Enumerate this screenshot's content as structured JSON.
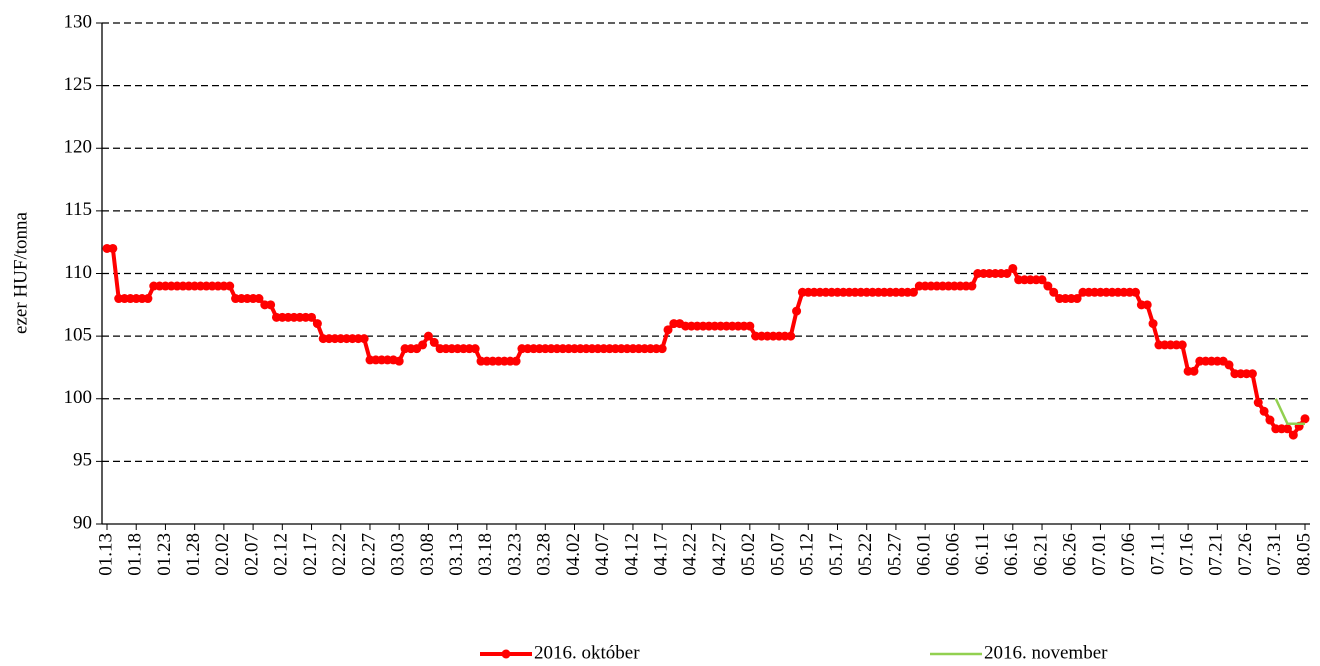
{
  "chart_data": {
    "type": "line",
    "y_label": "ezer HUF/tonna",
    "categories": [
      "01.13",
      null,
      null,
      null,
      null,
      "01.18",
      null,
      null,
      null,
      null,
      "01.23",
      null,
      null,
      null,
      null,
      "01.28",
      null,
      null,
      null,
      null,
      "02.02",
      null,
      null,
      null,
      null,
      "02.07",
      null,
      null,
      null,
      null,
      "02.12",
      null,
      null,
      null,
      null,
      "02.17",
      null,
      null,
      null,
      null,
      "02.22",
      null,
      null,
      null,
      null,
      "02.27",
      null,
      null,
      null,
      null,
      "03.03",
      null,
      null,
      null,
      null,
      "03.08",
      null,
      null,
      null,
      null,
      "03.13",
      null,
      null,
      null,
      null,
      "03.18",
      null,
      null,
      null,
      null,
      "03.23",
      null,
      null,
      null,
      null,
      "03.28",
      null,
      null,
      null,
      null,
      "04.02",
      null,
      null,
      null,
      null,
      "04.07",
      null,
      null,
      null,
      null,
      "04.12",
      null,
      null,
      null,
      null,
      "04.17",
      null,
      null,
      null,
      null,
      "04.22",
      null,
      null,
      null,
      null,
      "04.27",
      null,
      null,
      null,
      null,
      "05.02",
      null,
      null,
      null,
      null,
      "05.07",
      null,
      null,
      null,
      null,
      "05.12",
      null,
      null,
      null,
      null,
      "05.17",
      null,
      null,
      null,
      null,
      "05.22",
      null,
      null,
      null,
      null,
      "05.27",
      null,
      null,
      null,
      null,
      "06.01",
      null,
      null,
      null,
      null,
      "06.06",
      null,
      null,
      null,
      null,
      "06.11",
      null,
      null,
      null,
      null,
      "06.16",
      null,
      null,
      null,
      null,
      "06.21",
      null,
      null,
      null,
      null,
      "06.26",
      null,
      null,
      null,
      null,
      "07.01",
      null,
      null,
      null,
      null,
      "07.06",
      null,
      null,
      null,
      null,
      "07.11",
      null,
      null,
      null,
      null,
      "07.16",
      null,
      null,
      null,
      null,
      "07.21",
      null,
      null,
      null,
      null,
      "07.26",
      null,
      null,
      null,
      null,
      "07.31",
      null,
      null,
      null,
      null,
      "08.05"
    ],
    "series": [
      {
        "name": "2016. október",
        "color": "#ff0000",
        "marker": true,
        "values": [
          112,
          112,
          108,
          108,
          108,
          108,
          108,
          108,
          109,
          109,
          109,
          109,
          109,
          109,
          109,
          109,
          109,
          109,
          109,
          109,
          109,
          109,
          108,
          108,
          108,
          108,
          108,
          107.5,
          107.5,
          106.5,
          106.5,
          106.5,
          106.5,
          106.5,
          106.5,
          106.5,
          106,
          104.8,
          104.8,
          104.8,
          104.8,
          104.8,
          104.8,
          104.8,
          104.8,
          103.1,
          103.1,
          103.1,
          103.1,
          103.1,
          103,
          104,
          104,
          104,
          104.3,
          105,
          104.5,
          104,
          104,
          104,
          104,
          104,
          104,
          104,
          103,
          103,
          103,
          103,
          103,
          103,
          103,
          104,
          104,
          104,
          104,
          104,
          104,
          104,
          104,
          104,
          104,
          104,
          104,
          104,
          104,
          104,
          104,
          104,
          104,
          104,
          104,
          104,
          104,
          104,
          104,
          104,
          105.5,
          106,
          106,
          105.8,
          105.8,
          105.8,
          105.8,
          105.8,
          105.8,
          105.8,
          105.8,
          105.8,
          105.8,
          105.8,
          105.8,
          105,
          105,
          105,
          105,
          105,
          105,
          105,
          107,
          108.5,
          108.5,
          108.5,
          108.5,
          108.5,
          108.5,
          108.5,
          108.5,
          108.5,
          108.5,
          108.5,
          108.5,
          108.5,
          108.5,
          108.5,
          108.5,
          108.5,
          108.5,
          108.5,
          108.5,
          109,
          109,
          109,
          109,
          109,
          109,
          109,
          109,
          109,
          109,
          110,
          110,
          110,
          110,
          110,
          110,
          110.4,
          109.5,
          109.5,
          109.5,
          109.5,
          109.5,
          109,
          108.5,
          108,
          108,
          108,
          108,
          108.5,
          108.5,
          108.5,
          108.5,
          108.5,
          108.5,
          108.5,
          108.5,
          108.5,
          108.5,
          107.5,
          107.5,
          106,
          104.3,
          104.3,
          104.3,
          104.3,
          104.3,
          102.2,
          102.2,
          103,
          103,
          103,
          103,
          103,
          102.7,
          102,
          102,
          102,
          102,
          99.7,
          99,
          98.3,
          97.6,
          97.6,
          97.6,
          97.1,
          97.8,
          98.4
        ]
      },
      {
        "name": "2016. november",
        "color": "#92d050",
        "marker": false,
        "values": [
          null,
          null,
          null,
          null,
          null,
          null,
          null,
          null,
          null,
          null,
          null,
          null,
          null,
          null,
          null,
          null,
          null,
          null,
          null,
          null,
          null,
          null,
          null,
          null,
          null,
          null,
          null,
          null,
          null,
          null,
          null,
          null,
          null,
          null,
          null,
          null,
          null,
          null,
          null,
          null,
          null,
          null,
          null,
          null,
          null,
          null,
          null,
          null,
          null,
          null,
          null,
          null,
          null,
          null,
          null,
          null,
          null,
          null,
          null,
          null,
          null,
          null,
          null,
          null,
          null,
          null,
          null,
          null,
          null,
          null,
          null,
          null,
          null,
          null,
          null,
          null,
          null,
          null,
          null,
          null,
          null,
          null,
          null,
          null,
          null,
          null,
          null,
          null,
          null,
          null,
          null,
          null,
          null,
          null,
          null,
          null,
          null,
          null,
          null,
          null,
          null,
          null,
          null,
          null,
          null,
          null,
          null,
          null,
          null,
          null,
          null,
          null,
          null,
          null,
          null,
          null,
          null,
          null,
          null,
          null,
          null,
          null,
          null,
          null,
          null,
          null,
          null,
          null,
          null,
          null,
          null,
          null,
          null,
          null,
          null,
          null,
          null,
          null,
          null,
          null,
          null,
          null,
          null,
          null,
          null,
          null,
          null,
          null,
          null,
          null,
          null,
          null,
          null,
          null,
          null,
          null,
          null,
          null,
          null,
          null,
          null,
          null,
          null,
          null,
          null,
          null,
          null,
          null,
          null,
          null,
          null,
          null,
          null,
          null,
          null,
          null,
          null,
          null,
          null,
          null,
          null,
          null,
          null,
          null,
          null,
          null,
          null,
          null,
          null,
          null,
          null,
          null,
          null,
          null,
          null,
          null,
          null,
          null,
          null,
          null,
          100,
          99,
          98,
          98,
          98,
          98
        ]
      }
    ],
    "ylim": [
      90,
      130
    ],
    "yticks": [
      90,
      95,
      100,
      105,
      110,
      115,
      120,
      125,
      130
    ],
    "grid": true,
    "legend": "bottom"
  }
}
